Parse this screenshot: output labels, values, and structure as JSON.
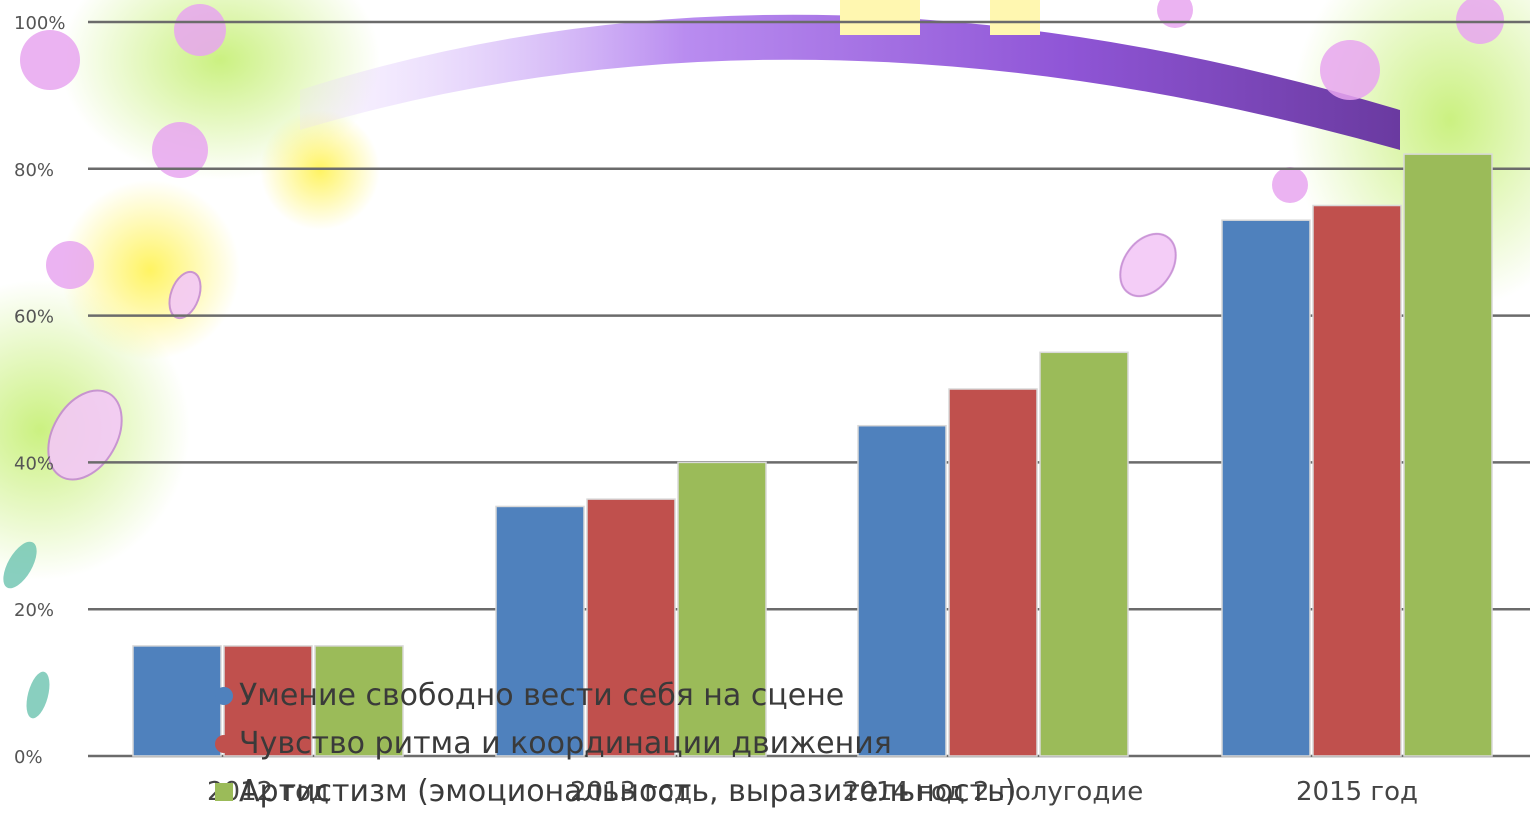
{
  "chart_data": {
    "type": "bar",
    "categories": [
      "2012 год",
      "2013 год",
      "2014 год 2 полугодие",
      "2015 год"
    ],
    "series": [
      {
        "name": "Умение свободно вести себя на сцене",
        "values": [
          15,
          34,
          45,
          73
        ],
        "color": "#4f81bd"
      },
      {
        "name": "Чувство ритма и координации движения",
        "values": [
          15,
          35,
          50,
          75
        ],
        "color": "#c0504d"
      },
      {
        "name": "Артистизм (эмоциональность, выразительность)",
        "values": [
          15,
          40,
          55,
          82
        ],
        "color": "#9bbb59"
      }
    ],
    "yticks": [
      "0%",
      "20%",
      "40%",
      "60%",
      "80%",
      "100%"
    ],
    "ylim": [
      0,
      100
    ],
    "grid": true,
    "legend_position": "bottom-left",
    "background": "floral illustration with rainbow"
  }
}
